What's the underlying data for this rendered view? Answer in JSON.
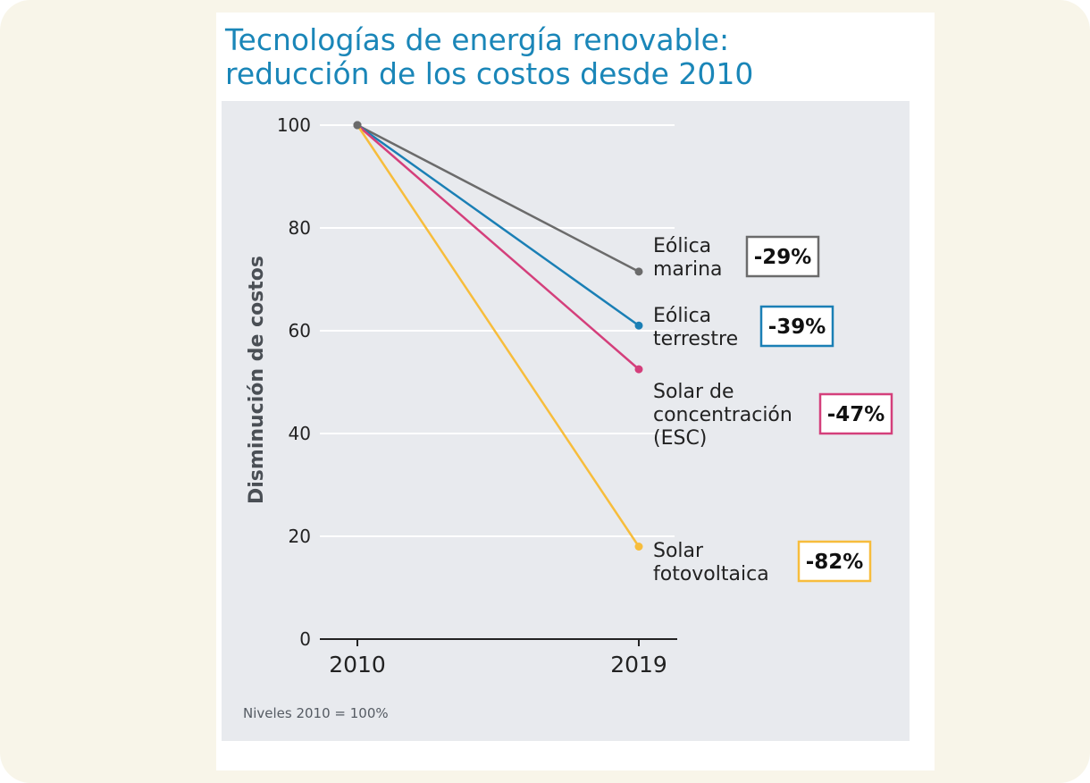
{
  "chart_data": {
    "type": "line",
    "title": "Tecnologías de energía renovable: reducción de los costos desde 2010",
    "title_lines": [
      "Tecnologías de energía renovable:",
      "reducción de los costos desde 2010"
    ],
    "ylabel": "Disminución de costos",
    "xlabel": "",
    "x": [
      "2010",
      "2019"
    ],
    "ylim": [
      0,
      100
    ],
    "yticks": [
      0,
      20,
      40,
      60,
      80,
      100
    ],
    "grid": true,
    "note": "Niveles 2010 = 100%",
    "series": [
      {
        "name_lines": [
          "Eólica",
          "marina"
        ],
        "values": [
          100,
          71.5
        ],
        "change": "-29%",
        "color": "#6b6b6b"
      },
      {
        "name_lines": [
          "Eólica",
          "terrestre"
        ],
        "values": [
          100,
          61
        ],
        "change": "-39%",
        "color": "#1a7fb5"
      },
      {
        "name_lines": [
          "Solar de",
          "concentración",
          "(ESC)"
        ],
        "values": [
          100,
          52.5
        ],
        "change": "-47%",
        "color": "#d43f7b"
      },
      {
        "name_lines": [
          "Solar",
          "fotovoltaica"
        ],
        "values": [
          100,
          18
        ],
        "change": "-82%",
        "color": "#f7bd3c"
      }
    ]
  }
}
